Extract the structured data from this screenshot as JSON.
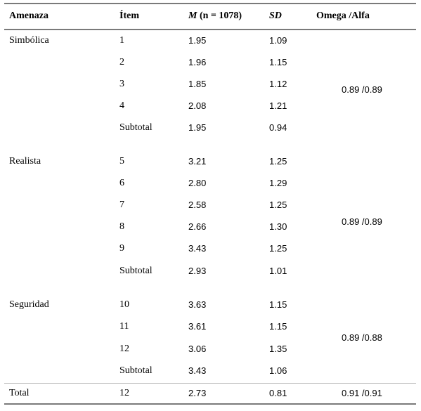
{
  "headers": {
    "threat": "Amenaza",
    "item": "Ítem",
    "mean_symbol": "M",
    "mean_rest": " (n = 1078)",
    "sd": "SD",
    "omega": "Omega /Alfa"
  },
  "groups": [
    {
      "name": "Simbólica",
      "omega": "0.89 /0.89",
      "rows": [
        {
          "item": "1",
          "m": "1.95",
          "sd": "1.09"
        },
        {
          "item": "2",
          "m": "1.96",
          "sd": "1.15"
        },
        {
          "item": "3",
          "m": "1.85",
          "sd": "1.12"
        },
        {
          "item": "4",
          "m": "2.08",
          "sd": "1.21"
        },
        {
          "item": "Subtotal",
          "m": "1.95",
          "sd": "0.94"
        }
      ]
    },
    {
      "name": "Realista",
      "omega": "0.89 /0.89",
      "rows": [
        {
          "item": "5",
          "m": "3.21",
          "sd": "1.25"
        },
        {
          "item": "6",
          "m": "2.80",
          "sd": "1.29"
        },
        {
          "item": "7",
          "m": "2.58",
          "sd": "1.25"
        },
        {
          "item": "8",
          "m": "2.66",
          "sd": "1.30"
        },
        {
          "item": "9",
          "m": "3.43",
          "sd": "1.25"
        },
        {
          "item": "Subtotal",
          "m": "2.93",
          "sd": "1.01"
        }
      ]
    },
    {
      "name": "Seguridad",
      "omega": "0.89 /0.88",
      "rows": [
        {
          "item": "10",
          "m": "3.63",
          "sd": "1.15"
        },
        {
          "item": "11",
          "m": "3.61",
          "sd": "1.15"
        },
        {
          "item": "12",
          "m": "3.06",
          "sd": "1.35"
        },
        {
          "item": "Subtotal",
          "m": "3.43",
          "sd": "1.06"
        }
      ]
    }
  ],
  "total": {
    "name": "Total",
    "item": "12",
    "m": "2.73",
    "sd": "0.81",
    "omega": "0.91 /0.91"
  }
}
